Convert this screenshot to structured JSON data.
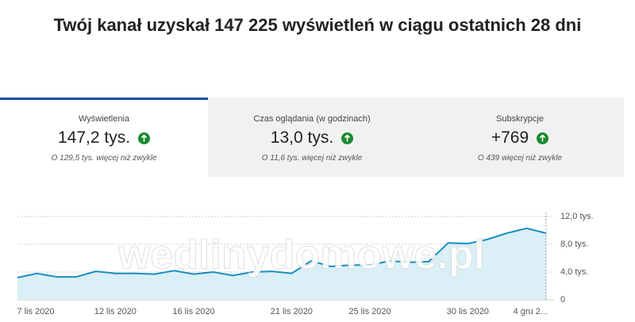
{
  "header": {
    "title": "Twój kanał uzyskał 147 225 wyświetleń w ciągu ostatnich 28 dni"
  },
  "tabs": [
    {
      "label": "Wyświetlenia",
      "value": "147,2 tys.",
      "comparison": "O 129,5 tys. więcej niż zwykle"
    },
    {
      "label": "Czas oglądania (w godzinach)",
      "value": "13,0 tys.",
      "comparison": "O 11,6 tys. więcej niż zwykle"
    },
    {
      "label": "Subskrypcje",
      "value": "+769",
      "comparison": "O 439 więcej niż zwykle"
    }
  ],
  "watermark": "wedlinydomowe.pl",
  "chart_data": {
    "type": "area",
    "categories": [
      "7 lis 2020",
      null,
      null,
      null,
      null,
      "12 lis 2020",
      null,
      null,
      null,
      "16 lis 2020",
      null,
      null,
      null,
      null,
      "21 lis 2020",
      null,
      null,
      null,
      "25 lis 2020",
      null,
      null,
      null,
      null,
      "30 lis 2020",
      null,
      null,
      null,
      "4 gru 2..."
    ],
    "values": [
      3200,
      3800,
      3300,
      3300,
      4100,
      3800,
      3800,
      3700,
      4200,
      3700,
      4000,
      3500,
      4000,
      4100,
      3800,
      5600,
      4800,
      5000,
      5000,
      5600,
      5400,
      5500,
      8200,
      8100,
      8700,
      9600,
      10300,
      9600
    ],
    "color": "#1a8fc0",
    "ylim": [
      0,
      12000
    ],
    "yticks": [
      0,
      {
        "value": 4000,
        "label": "4,0 tys."
      },
      {
        "value": 8000,
        "label": "8,0 tys."
      },
      {
        "value": 12000,
        "label": "12,0 tys."
      }
    ],
    "grid": true
  }
}
